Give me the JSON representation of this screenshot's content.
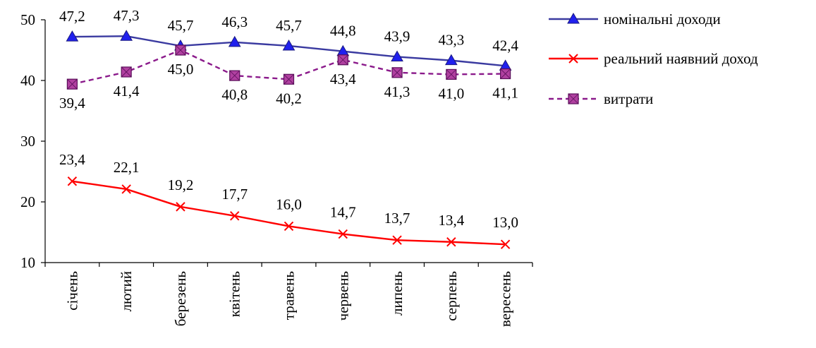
{
  "chart_data": {
    "type": "line",
    "categories": [
      "січень",
      "лютий",
      "березень",
      "квітень",
      "травень",
      "червень",
      "липень",
      "серпень",
      "вересень"
    ],
    "ylim": [
      10,
      50
    ],
    "yticks": [
      "10",
      "20",
      "30",
      "40",
      "50"
    ],
    "ytick_values": [
      10,
      20,
      30,
      40,
      50
    ],
    "legend_position": "top-right",
    "grid": false,
    "series": [
      {
        "name": "номінальні доходи",
        "color": "#3333aa",
        "marker": "triangle",
        "line_style": "solid",
        "values": [
          47.2,
          47.3,
          45.7,
          46.3,
          45.7,
          44.8,
          43.9,
          43.3,
          42.4
        ],
        "labels": [
          "47,2",
          "47,3",
          "45,7",
          "46,3",
          "45,7",
          "44,8",
          "43,9",
          "43,3",
          "42,4"
        ]
      },
      {
        "name": "реальний наявний доход",
        "color": "#ff0000",
        "marker": "x",
        "line_style": "solid",
        "values": [
          23.4,
          22.1,
          19.2,
          17.7,
          16.0,
          14.7,
          13.7,
          13.4,
          13.0
        ],
        "labels": [
          "23,4",
          "22,1",
          "19,2",
          "17,7",
          "16,0",
          "14,7",
          "13,7",
          "13,4",
          "13,0"
        ]
      },
      {
        "name": "витрати",
        "color": "#8b1a8b",
        "marker": "square",
        "line_style": "dashed",
        "values": [
          39.4,
          41.4,
          45.0,
          40.8,
          40.2,
          43.4,
          41.3,
          41.0,
          41.1
        ],
        "labels": [
          "39,4",
          "41,4",
          "45,0",
          "40,8",
          "40,2",
          "43,4",
          "41,3",
          "41,0",
          "41,1"
        ]
      }
    ]
  }
}
